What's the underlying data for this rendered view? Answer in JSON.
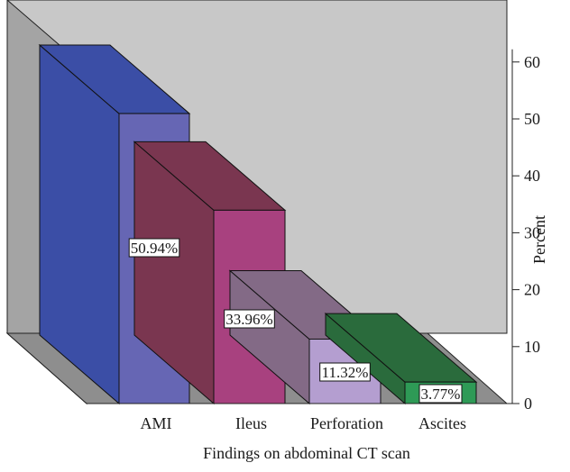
{
  "chart_data": {
    "type": "bar",
    "title": "",
    "xlabel": "Findings on abdominal CT scan",
    "ylabel": "Percent",
    "categories": [
      "AMI",
      "Ileus",
      "Perforation",
      "Ascites"
    ],
    "values": [
      50.94,
      33.96,
      11.32,
      3.77
    ],
    "data_labels": [
      "50.94%",
      "33.96%",
      "11.32%",
      "3.77%"
    ],
    "ylim": [
      0,
      60
    ],
    "yticks": [
      0,
      10,
      20,
      30,
      40,
      50,
      60
    ],
    "ytick_labels": [
      "0",
      "10",
      "20",
      "30",
      "40",
      "50",
      "60"
    ],
    "y_axis_position": "right",
    "style": "3d",
    "grid": false,
    "legend": "none",
    "colors": {
      "back_wall": "#c8c8c8",
      "side_wall": "#a4a4a4",
      "floor": "#8e8e8e",
      "bars": [
        {
          "front": "#6666b4",
          "side": "#3b4ea6",
          "top": "#3b4ea6"
        },
        {
          "front": "#a8417f",
          "side": "#7a3650",
          "top": "#7a3650"
        },
        {
          "front": "#b49ed0",
          "side": "#836a86",
          "top": "#836a86"
        },
        {
          "front": "#2e9a56",
          "side": "#2a6b3c",
          "top": "#2a6b3c"
        }
      ]
    }
  }
}
